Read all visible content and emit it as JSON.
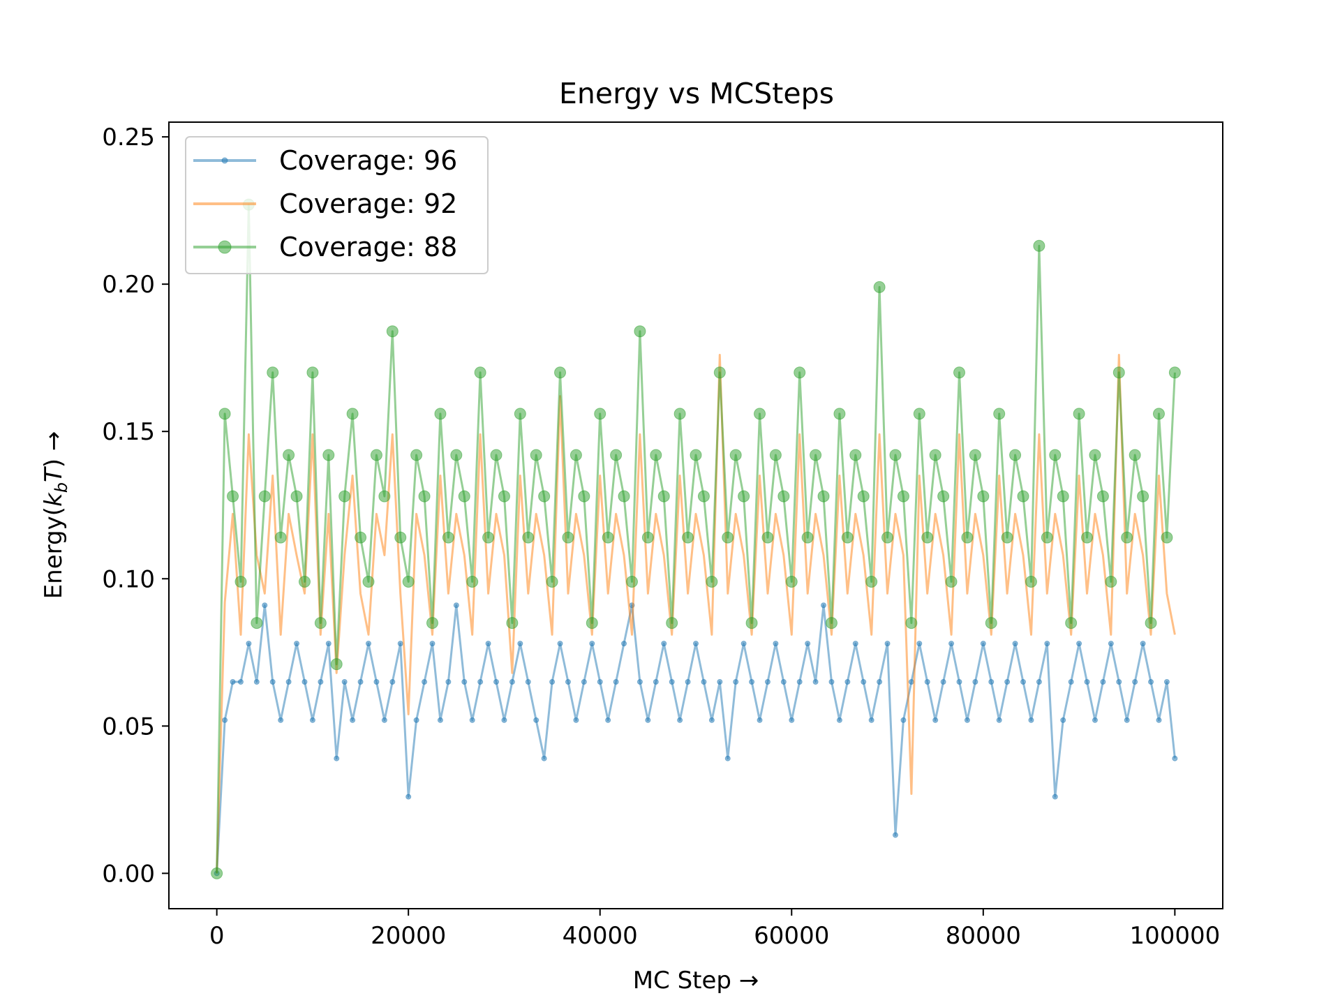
{
  "chart_data": {
    "type": "line",
    "title": "Energy vs MCSteps",
    "xlabel": "MC Step →",
    "ylabel_prefix": "Energy(",
    "ylabel_k": "k",
    "ylabel_sub": "b",
    "ylabel_T": "T",
    "ylabel_suffix": ") →",
    "xlim": [
      -5000,
      105000
    ],
    "ylim": [
      -0.012,
      0.255
    ],
    "xticks": [
      0,
      20000,
      40000,
      60000,
      80000,
      100000
    ],
    "xtick_labels": [
      "0",
      "20000",
      "40000",
      "60000",
      "80000",
      "100000"
    ],
    "yticks": [
      0.0,
      0.05,
      0.1,
      0.15,
      0.2,
      0.25
    ],
    "ytick_labels": [
      "0.00",
      "0.05",
      "0.10",
      "0.15",
      "0.20",
      "0.25"
    ],
    "legend_position": "top-left",
    "grid": false,
    "x_step": 100,
    "series": [
      {
        "name": "Coverage: 96",
        "color": "#1f77b4",
        "marker": "small-dot",
        "values": [
          0.0,
          0.052,
          0.065,
          0.065,
          0.078,
          0.065,
          0.091,
          0.065,
          0.052,
          0.065,
          0.078,
          0.065,
          0.052,
          0.065,
          0.078,
          0.039,
          0.065,
          0.052,
          0.065,
          0.078,
          0.065,
          0.052,
          0.065,
          0.078,
          0.026,
          0.052,
          0.065,
          0.078,
          0.052,
          0.065,
          0.091,
          0.065,
          0.052,
          0.065,
          0.078,
          0.065,
          0.052,
          0.065,
          0.078,
          0.065,
          0.052,
          0.039,
          0.065,
          0.078,
          0.065,
          0.052,
          0.065,
          0.078,
          0.065,
          0.052,
          0.065,
          0.078,
          0.091,
          0.065,
          0.052,
          0.065,
          0.078,
          0.065,
          0.052,
          0.065,
          0.078,
          0.065,
          0.052,
          0.065,
          0.039,
          0.065,
          0.078,
          0.065,
          0.052,
          0.065,
          0.078,
          0.065,
          0.052,
          0.065,
          0.078,
          0.065,
          0.091,
          0.065,
          0.052,
          0.065,
          0.078,
          0.065,
          0.052,
          0.065,
          0.078,
          0.013,
          0.052,
          0.065,
          0.078,
          0.065,
          0.052,
          0.065,
          0.078,
          0.065,
          0.052,
          0.065,
          0.078,
          0.065,
          0.052,
          0.065,
          0.078,
          0.065,
          0.052,
          0.065,
          0.078,
          0.026,
          0.052,
          0.065,
          0.078,
          0.065,
          0.052,
          0.065,
          0.078,
          0.065,
          0.052,
          0.065,
          0.078,
          0.065,
          0.052,
          0.065,
          0.039
        ]
      },
      {
        "name": "Coverage: 92",
        "color": "#ff7f0e",
        "marker": "none",
        "values": [
          0.0,
          0.092,
          0.122,
          0.081,
          0.149,
          0.108,
          0.095,
          0.135,
          0.081,
          0.122,
          0.108,
          0.095,
          0.149,
          0.081,
          0.122,
          0.068,
          0.108,
          0.135,
          0.095,
          0.081,
          0.122,
          0.108,
          0.149,
          0.095,
          0.054,
          0.122,
          0.108,
          0.081,
          0.135,
          0.095,
          0.122,
          0.108,
          0.081,
          0.149,
          0.095,
          0.122,
          0.108,
          0.068,
          0.135,
          0.095,
          0.122,
          0.108,
          0.081,
          0.162,
          0.095,
          0.122,
          0.108,
          0.081,
          0.135,
          0.095,
          0.122,
          0.108,
          0.081,
          0.149,
          0.095,
          0.122,
          0.108,
          0.081,
          0.135,
          0.095,
          0.122,
          0.108,
          0.081,
          0.176,
          0.095,
          0.122,
          0.108,
          0.081,
          0.135,
          0.095,
          0.122,
          0.108,
          0.081,
          0.149,
          0.095,
          0.122,
          0.108,
          0.081,
          0.135,
          0.095,
          0.122,
          0.108,
          0.081,
          0.149,
          0.095,
          0.122,
          0.108,
          0.027,
          0.135,
          0.095,
          0.122,
          0.108,
          0.081,
          0.149,
          0.095,
          0.122,
          0.108,
          0.081,
          0.135,
          0.095,
          0.122,
          0.108,
          0.081,
          0.149,
          0.095,
          0.122,
          0.108,
          0.081,
          0.135,
          0.095,
          0.122,
          0.108,
          0.081,
          0.176,
          0.095,
          0.122,
          0.108,
          0.081,
          0.135,
          0.095,
          0.081
        ]
      },
      {
        "name": "Coverage: 88",
        "color": "#2ca02c",
        "marker": "large-circle",
        "values": [
          0.0,
          0.156,
          0.128,
          0.099,
          0.227,
          0.085,
          0.128,
          0.17,
          0.114,
          0.142,
          0.128,
          0.099,
          0.17,
          0.085,
          0.142,
          0.071,
          0.128,
          0.156,
          0.114,
          0.099,
          0.142,
          0.128,
          0.184,
          0.114,
          0.099,
          0.142,
          0.128,
          0.085,
          0.156,
          0.114,
          0.142,
          0.128,
          0.099,
          0.17,
          0.114,
          0.142,
          0.128,
          0.085,
          0.156,
          0.114,
          0.142,
          0.128,
          0.099,
          0.17,
          0.114,
          0.142,
          0.128,
          0.085,
          0.156,
          0.114,
          0.142,
          0.128,
          0.099,
          0.184,
          0.114,
          0.142,
          0.128,
          0.085,
          0.156,
          0.114,
          0.142,
          0.128,
          0.099,
          0.17,
          0.114,
          0.142,
          0.128,
          0.085,
          0.156,
          0.114,
          0.142,
          0.128,
          0.099,
          0.17,
          0.114,
          0.142,
          0.128,
          0.085,
          0.156,
          0.114,
          0.142,
          0.128,
          0.099,
          0.199,
          0.114,
          0.142,
          0.128,
          0.085,
          0.156,
          0.114,
          0.142,
          0.128,
          0.099,
          0.17,
          0.114,
          0.142,
          0.128,
          0.085,
          0.156,
          0.114,
          0.142,
          0.128,
          0.099,
          0.213,
          0.114,
          0.142,
          0.128,
          0.085,
          0.156,
          0.114,
          0.142,
          0.128,
          0.099,
          0.17,
          0.114,
          0.142,
          0.128,
          0.085,
          0.156,
          0.114,
          0.17
        ]
      }
    ]
  }
}
